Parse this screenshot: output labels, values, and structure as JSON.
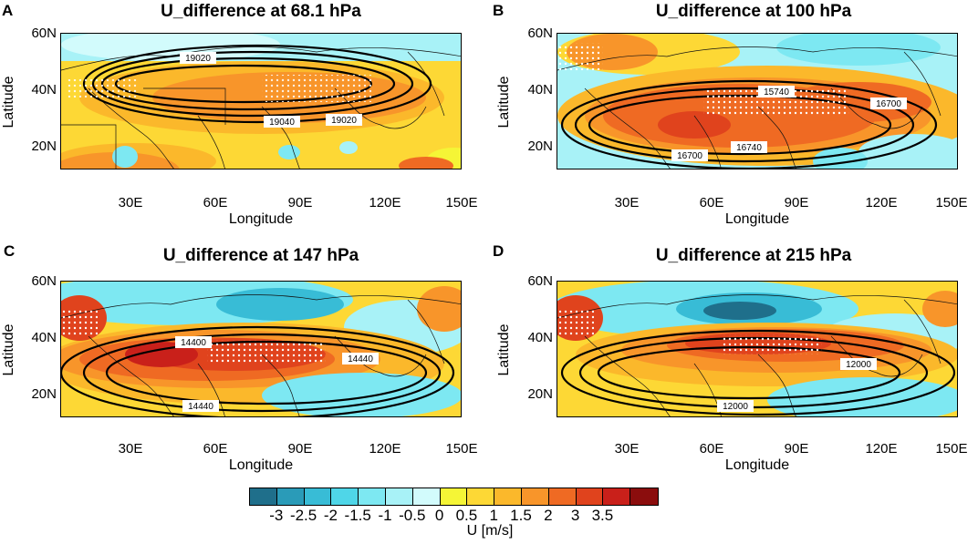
{
  "panels": [
    {
      "label": "A",
      "title": "U_difference at 68.1 hPa",
      "contours": [
        "19020",
        "19040",
        "19020"
      ]
    },
    {
      "label": "B",
      "title": "U_difference at 100 hPa",
      "contours": [
        "15740",
        "16700",
        "16740",
        "16700"
      ]
    },
    {
      "label": "C",
      "title": "U_difference at 147 hPa",
      "contours": [
        "14400",
        "14440",
        "14440"
      ]
    },
    {
      "label": "D",
      "title": "U_difference at 215 hPa",
      "contours": [
        "12000",
        "12000"
      ]
    }
  ],
  "axes": {
    "ylabel": "Latitude",
    "xlabel": "Longitude",
    "yticks": [
      "60N",
      "40N",
      "20N"
    ],
    "xticks": [
      "30E",
      "60E",
      "90E",
      "120E",
      "150E"
    ]
  },
  "colorbar": {
    "title": "U [m/s]",
    "ticks": [
      "-3",
      "-2.5",
      "-2",
      "-1.5",
      "-1",
      "-0.5",
      "0",
      "0.5",
      "1",
      "1.5",
      "2",
      "3",
      "3.5"
    ],
    "colors": [
      "#1f6f8b",
      "#2a9bb8",
      "#38bcd6",
      "#4fd6e8",
      "#7de8f2",
      "#a8f2f7",
      "#d2fbfc",
      "#f5f536",
      "#fdd835",
      "#fbb82b",
      "#f8952a",
      "#ef6a23",
      "#e0431d",
      "#c9201a",
      "#8b0d0d"
    ]
  }
}
